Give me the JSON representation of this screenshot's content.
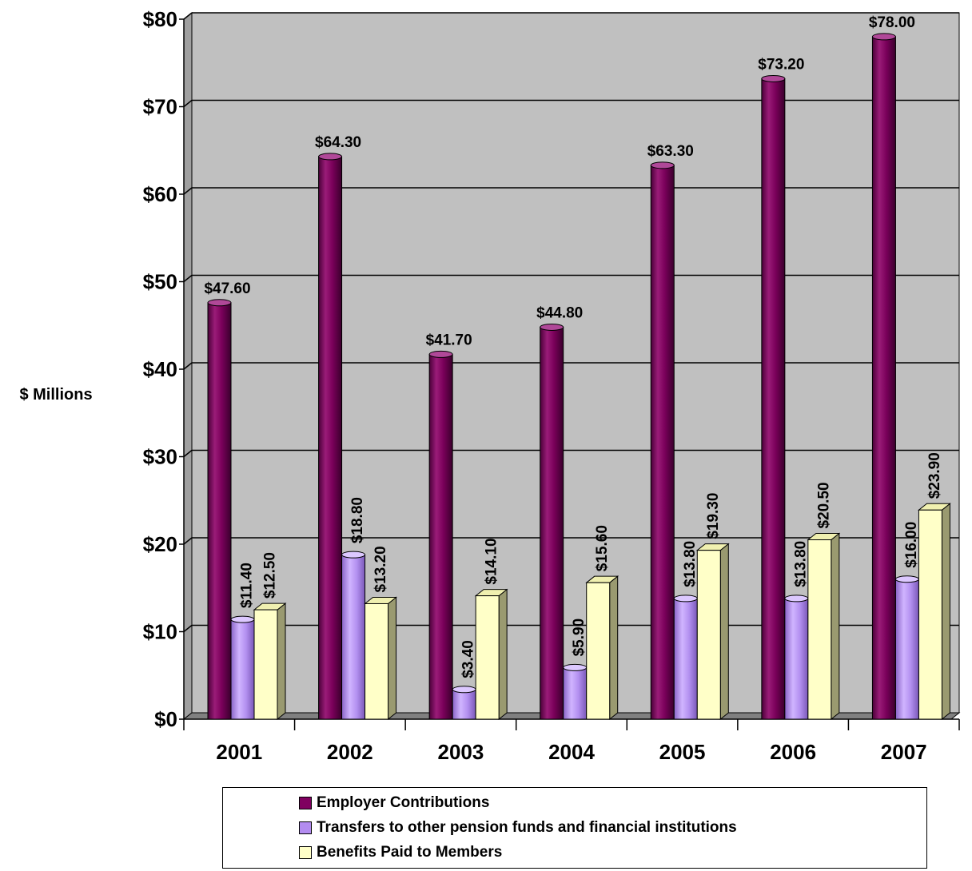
{
  "chart_data": {
    "type": "bar",
    "ylabel": "$ Millions",
    "ylim": [
      0,
      80
    ],
    "yticks": [
      "$0",
      "$10",
      "$20",
      "$30",
      "$40",
      "$50",
      "$60",
      "$70",
      "$80"
    ],
    "grid": true,
    "legend_position": "bottom",
    "categories": [
      "2001",
      "2002",
      "2003",
      "2004",
      "2005",
      "2006",
      "2007"
    ],
    "series": [
      {
        "name": "Employer Contributions",
        "color": "#800060",
        "values": [
          47.6,
          64.3,
          41.7,
          44.8,
          63.3,
          73.2,
          78.0
        ],
        "labels": [
          "$47.60",
          "$64.30",
          "$41.70",
          "$44.80",
          "$63.30",
          "$73.20",
          "$78.00"
        ]
      },
      {
        "name": "Transfers to other pension funds and financial institutions",
        "color": "#b38cf0",
        "values": [
          11.4,
          18.8,
          3.4,
          5.9,
          13.8,
          13.8,
          16.0
        ],
        "labels": [
          "$11.40",
          "$18.80",
          "$3.40",
          "$5.90",
          "$13.80",
          "$13.80",
          "$16.00"
        ]
      },
      {
        "name": "Benefits Paid to Members",
        "color": "#ffffc8",
        "values": [
          12.5,
          13.2,
          14.1,
          15.6,
          19.3,
          20.5,
          23.9
        ],
        "labels": [
          "$12.50",
          "$13.20",
          "$14.10",
          "$15.60",
          "$19.30",
          "$20.50",
          "$23.90"
        ]
      }
    ]
  }
}
